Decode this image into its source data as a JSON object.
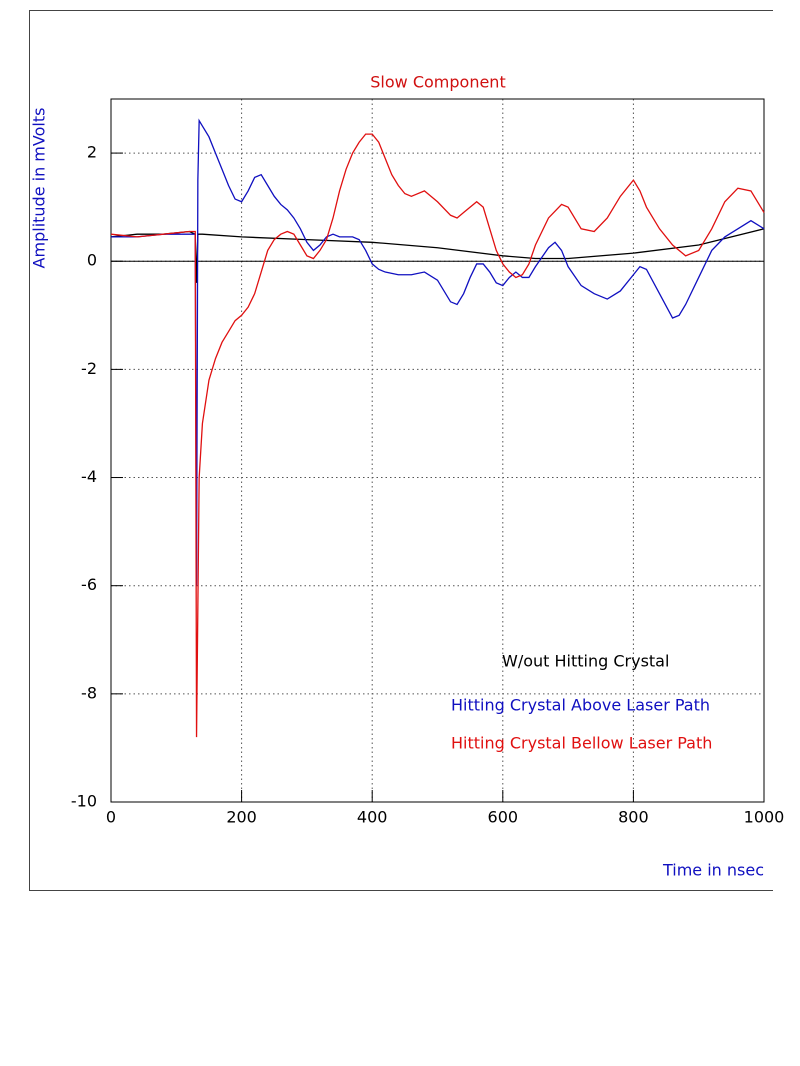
{
  "chart_data": {
    "type": "line",
    "title": "Slow Component",
    "title_color": "#d01010",
    "x_label": "Time in nsec",
    "y_label": "Amplitude in mVolts",
    "axis_label_color": "#1010c0",
    "xlim": [
      0,
      1000
    ],
    "ylim": [
      -10,
      3
    ],
    "xticks": [
      0,
      200,
      400,
      600,
      800,
      1000
    ],
    "yticks": [
      -10,
      -8,
      -6,
      -4,
      -2,
      0,
      2
    ],
    "grid": true,
    "series": [
      {
        "name": "W/out Hitting Crystal",
        "color": "#000000",
        "x": [
          0,
          40,
          80,
          120,
          129,
          131,
          133,
          140,
          200,
          300,
          400,
          500,
          600,
          650,
          700,
          800,
          900,
          1000
        ],
        "values": [
          0.45,
          0.5,
          0.5,
          0.55,
          0.5,
          -0.4,
          0.5,
          0.5,
          0.45,
          0.4,
          0.35,
          0.25,
          0.1,
          0.05,
          0.05,
          0.15,
          0.3,
          0.6
        ]
      },
      {
        "name": "Hitting Crystal Above Laser Path",
        "color": "#1010c0",
        "x": [
          0,
          40,
          80,
          120,
          129,
          131,
          133,
          135,
          140,
          150,
          160,
          170,
          180,
          190,
          200,
          210,
          220,
          230,
          240,
          250,
          260,
          270,
          280,
          290,
          300,
          310,
          320,
          330,
          340,
          350,
          360,
          370,
          380,
          390,
          400,
          410,
          420,
          440,
          460,
          480,
          500,
          520,
          530,
          540,
          550,
          560,
          570,
          580,
          590,
          600,
          610,
          620,
          630,
          640,
          650,
          670,
          680,
          690,
          700,
          720,
          740,
          760,
          780,
          800,
          810,
          820,
          840,
          860,
          870,
          880,
          900,
          920,
          940,
          960,
          980,
          1000
        ],
        "values": [
          0.45,
          0.45,
          0.5,
          0.5,
          0.5,
          -6,
          1.5,
          2.6,
          2.5,
          2.3,
          2.0,
          1.7,
          1.4,
          1.15,
          1.1,
          1.3,
          1.55,
          1.6,
          1.4,
          1.2,
          1.05,
          0.95,
          0.8,
          0.6,
          0.35,
          0.2,
          0.3,
          0.45,
          0.5,
          0.45,
          0.45,
          0.45,
          0.4,
          0.2,
          -0.05,
          -0.15,
          -0.2,
          -0.25,
          -0.25,
          -0.2,
          -0.35,
          -0.75,
          -0.8,
          -0.6,
          -0.3,
          -0.05,
          -0.05,
          -0.2,
          -0.4,
          -0.45,
          -0.3,
          -0.2,
          -0.3,
          -0.3,
          -0.1,
          0.25,
          0.35,
          0.2,
          -0.1,
          -0.45,
          -0.6,
          -0.7,
          -0.55,
          -0.25,
          -0.1,
          -0.15,
          -0.6,
          -1.05,
          -1.0,
          -0.8,
          -0.3,
          0.2,
          0.45,
          0.6,
          0.75,
          0.6
        ]
      },
      {
        "name": "Hitting Crystal Bellow Laser Path",
        "color": "#e01010",
        "x": [
          0,
          40,
          80,
          120,
          129,
          131,
          135,
          140,
          150,
          160,
          170,
          180,
          190,
          200,
          210,
          220,
          230,
          240,
          250,
          260,
          270,
          280,
          290,
          300,
          310,
          320,
          330,
          340,
          350,
          360,
          370,
          380,
          390,
          400,
          410,
          420,
          430,
          440,
          450,
          460,
          480,
          500,
          520,
          530,
          540,
          560,
          570,
          580,
          590,
          600,
          610,
          620,
          630,
          640,
          650,
          670,
          690,
          700,
          720,
          740,
          760,
          780,
          800,
          810,
          820,
          840,
          860,
          880,
          900,
          920,
          940,
          960,
          980,
          1000
        ],
        "values": [
          0.5,
          0.45,
          0.5,
          0.55,
          0.55,
          -8.8,
          -4,
          -3,
          -2.2,
          -1.8,
          -1.5,
          -1.3,
          -1.1,
          -1.0,
          -0.85,
          -0.6,
          -0.2,
          0.2,
          0.4,
          0.5,
          0.55,
          0.5,
          0.3,
          0.1,
          0.05,
          0.2,
          0.4,
          0.8,
          1.3,
          1.7,
          2.0,
          2.2,
          2.35,
          2.35,
          2.2,
          1.9,
          1.6,
          1.4,
          1.25,
          1.2,
          1.3,
          1.1,
          0.85,
          0.8,
          0.9,
          1.1,
          1.0,
          0.6,
          0.2,
          -0.05,
          -0.2,
          -0.3,
          -0.25,
          -0.05,
          0.3,
          0.8,
          1.05,
          1.0,
          0.6,
          0.55,
          0.8,
          1.2,
          1.5,
          1.3,
          1.0,
          0.6,
          0.3,
          0.1,
          0.2,
          0.6,
          1.1,
          1.35,
          1.3,
          0.9
        ]
      }
    ]
  }
}
